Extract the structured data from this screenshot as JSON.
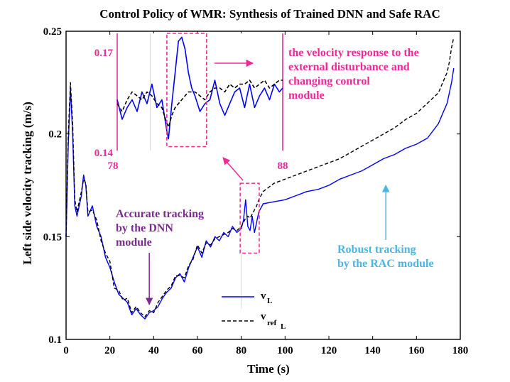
{
  "chart_data": {
    "type": "line",
    "title": "Control Policy of WMR: Synthesis of Trained DNN and Safe RAC",
    "xlabel": "Time (s)",
    "ylabel": "Left side velocity tracking (m/s)",
    "xlim": [
      0,
      180
    ],
    "ylim": [
      0.1,
      0.25
    ],
    "x_ticks": [
      "0",
      "20",
      "40",
      "60",
      "80",
      "100",
      "120",
      "140",
      "160",
      "180"
    ],
    "y_ticks": [
      "0.1",
      "0.15",
      "0.2",
      "0.25"
    ],
    "series": [
      {
        "name": "v_L",
        "legend_main": "v",
        "legend_sub": "L",
        "color": "#0000ff",
        "style": "solid",
        "x": [
          0,
          1,
          2,
          3,
          4,
          5,
          7,
          8,
          9,
          10,
          12,
          14,
          16,
          18,
          20,
          22,
          24,
          26,
          28,
          30,
          32,
          34,
          36,
          38,
          40,
          42,
          44,
          46,
          48,
          50,
          52,
          54,
          56,
          58,
          60,
          62,
          64,
          66,
          68,
          70,
          72,
          74,
          76,
          78,
          80,
          81,
          82,
          83,
          84,
          85,
          86,
          87,
          88,
          90,
          95,
          100,
          105,
          110,
          115,
          120,
          125,
          130,
          135,
          140,
          145,
          150,
          155,
          160,
          165,
          170,
          172,
          174,
          175,
          176,
          177
        ],
        "y": [
          0.15,
          0.195,
          0.222,
          0.2,
          0.165,
          0.16,
          0.17,
          0.18,
          0.175,
          0.16,
          0.165,
          0.155,
          0.15,
          0.14,
          0.135,
          0.128,
          0.122,
          0.12,
          0.118,
          0.112,
          0.115,
          0.112,
          0.11,
          0.113,
          0.114,
          0.116,
          0.12,
          0.123,
          0.125,
          0.13,
          0.132,
          0.128,
          0.135,
          0.14,
          0.145,
          0.14,
          0.148,
          0.145,
          0.15,
          0.148,
          0.152,
          0.15,
          0.155,
          0.152,
          0.154,
          0.158,
          0.168,
          0.155,
          0.153,
          0.16,
          0.152,
          0.157,
          0.162,
          0.166,
          0.167,
          0.168,
          0.17,
          0.172,
          0.173,
          0.175,
          0.178,
          0.18,
          0.182,
          0.185,
          0.188,
          0.19,
          0.193,
          0.195,
          0.198,
          0.205,
          0.21,
          0.215,
          0.22,
          0.225,
          0.232
        ]
      },
      {
        "name": "v_ref_L",
        "legend_main": "v",
        "legend_sub": "ref",
        "legend_subsub": "L",
        "color": "#000000",
        "style": "dashed",
        "x": [
          0,
          1,
          2,
          3,
          4,
          5,
          7,
          8,
          9,
          10,
          12,
          14,
          16,
          18,
          20,
          22,
          24,
          26,
          28,
          30,
          32,
          34,
          36,
          38,
          40,
          42,
          44,
          46,
          48,
          50,
          52,
          54,
          56,
          58,
          60,
          62,
          64,
          66,
          68,
          70,
          72,
          74,
          76,
          78,
          80,
          81,
          82,
          83,
          84,
          85,
          86,
          87,
          88,
          90,
          95,
          100,
          105,
          110,
          115,
          120,
          125,
          130,
          135,
          140,
          145,
          150,
          155,
          160,
          165,
          170,
          172,
          174,
          175,
          176,
          177
        ],
        "y": [
          0.15,
          0.2,
          0.225,
          0.205,
          0.168,
          0.162,
          0.172,
          0.178,
          0.176,
          0.162,
          0.163,
          0.158,
          0.148,
          0.142,
          0.138,
          0.125,
          0.124,
          0.119,
          0.12,
          0.113,
          0.116,
          0.113,
          0.111,
          0.114,
          0.113,
          0.118,
          0.121,
          0.124,
          0.126,
          0.131,
          0.131,
          0.13,
          0.136,
          0.139,
          0.146,
          0.142,
          0.147,
          0.146,
          0.149,
          0.15,
          0.151,
          0.152,
          0.154,
          0.153,
          0.155,
          0.157,
          0.159,
          0.16,
          0.159,
          0.161,
          0.163,
          0.165,
          0.168,
          0.172,
          0.176,
          0.178,
          0.18,
          0.182,
          0.184,
          0.186,
          0.188,
          0.191,
          0.194,
          0.197,
          0.2,
          0.203,
          0.207,
          0.21,
          0.215,
          0.22,
          0.225,
          0.23,
          0.235,
          0.242,
          0.247
        ]
      }
    ],
    "inset": {
      "xlim": [
        78,
        88
      ],
      "ylim": [
        0.14,
        0.17
      ],
      "x_ticks": [
        "78",
        "88"
      ],
      "y_ticks": [
        "0.17",
        "0.14"
      ],
      "zoom_window": {
        "xlim": [
          80,
          88
        ],
        "ylim": [
          0.145,
          0.175
        ]
      },
      "highlight_xlim": [
        81,
        82.2
      ],
      "highlight_ylim": [
        0.141,
        0.17
      ],
      "vline_x": 80,
      "series": [
        {
          "name": "v_L",
          "x": [
            78,
            78.3,
            78.6,
            78.9,
            79.2,
            79.5,
            79.8,
            80.1,
            80.4,
            80.7,
            81,
            81.1,
            81.3,
            81.5,
            81.7,
            81.9,
            82.1,
            82.3,
            82.5,
            82.7,
            83,
            83.3,
            83.6,
            83.9,
            84.2,
            84.5,
            84.8,
            85.1,
            85.4,
            85.7,
            86,
            86.3,
            86.6,
            86.9,
            87.2,
            87.5,
            87.8,
            88
          ],
          "y": [
            0.153,
            0.148,
            0.151,
            0.153,
            0.15,
            0.155,
            0.152,
            0.157,
            0.151,
            0.153,
            0.145,
            0.143,
            0.152,
            0.16,
            0.168,
            0.169,
            0.166,
            0.16,
            0.156,
            0.154,
            0.15,
            0.152,
            0.153,
            0.158,
            0.152,
            0.149,
            0.152,
            0.155,
            0.156,
            0.151,
            0.157,
            0.151,
            0.154,
            0.156,
            0.153,
            0.157,
            0.155,
            0.156
          ]
        },
        {
          "name": "v_ref_L",
          "x": [
            78,
            78.3,
            78.6,
            78.9,
            79.2,
            79.5,
            79.8,
            80.1,
            80.4,
            80.7,
            81,
            81.1,
            81.3,
            81.5,
            81.7,
            81.9,
            82.1,
            82.3,
            82.5,
            82.7,
            83,
            83.3,
            83.6,
            83.9,
            84.2,
            84.5,
            84.8,
            85.1,
            85.4,
            85.7,
            86,
            86.3,
            86.6,
            86.9,
            87.2,
            87.5,
            87.8,
            88
          ],
          "y": [
            0.152,
            0.15,
            0.153,
            0.155,
            0.154,
            0.153,
            0.155,
            0.154,
            0.152,
            0.151,
            0.147,
            0.146,
            0.149,
            0.151,
            0.152,
            0.153,
            0.154,
            0.155,
            0.155,
            0.155,
            0.154,
            0.153,
            0.155,
            0.156,
            0.156,
            0.155,
            0.157,
            0.156,
            0.157,
            0.157,
            0.158,
            0.156,
            0.157,
            0.158,
            0.156,
            0.157,
            0.158,
            0.158
          ]
        }
      ]
    },
    "annotations": {
      "dnn_lines": [
        "Accurate tracking",
        "by the DNN",
        "module"
      ],
      "dnn_color": "#7b2b8f",
      "dnn_arrow_to": {
        "x": 38,
        "y": 0.117
      },
      "rac_lines": [
        "Robust tracking",
        "by the RAC module"
      ],
      "rac_color": "#4ab6e6",
      "rac_arrow_to": {
        "x": 146,
        "y": 0.175
      },
      "inset_lines": [
        "the velocity response to the",
        "external disturbance and",
        "changing control",
        "module"
      ],
      "inset_color": "#ee2a9a",
      "zoom_box": {
        "xlim": [
          79.5,
          88.2
        ],
        "ylim": [
          0.142,
          0.176
        ]
      }
    },
    "legend_position": "lower-middle"
  }
}
